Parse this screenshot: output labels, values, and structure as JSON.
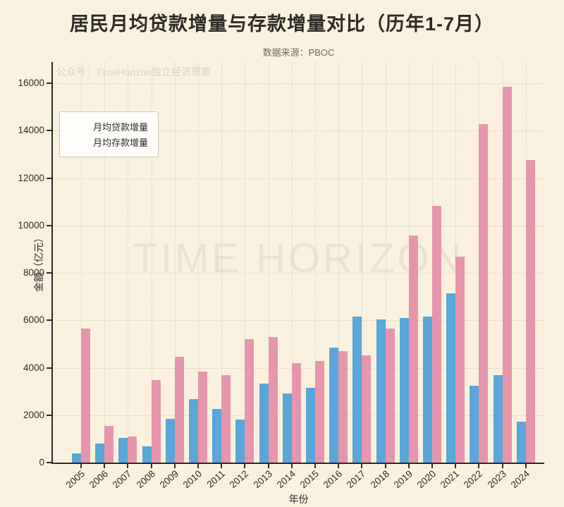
{
  "title": "居民月均贷款增量与存款增量对比（历年1-7月）",
  "subtitle": "数据来源：PBOC",
  "watermarks": {
    "plot_corner": "公众号：TimeHorizon独立经济观察",
    "center": "TIME HORIZON"
  },
  "colors": {
    "background": "#f9f1dd",
    "loan_blue": "#58a6da",
    "deposit_pink": "#e795ac",
    "spine": "#2b2b2b",
    "grid": "#d8cfba"
  },
  "chart_data": {
    "type": "bar",
    "title": "居民月均贷款增量与存款增量对比（历年1-7月）",
    "subtitle": "数据来源：PBOC",
    "xlabel": "年份",
    "ylabel": "金额（亿元）",
    "categories": [
      "2005",
      "2006",
      "2007",
      "2008",
      "2009",
      "2010",
      "2011",
      "2012",
      "2013",
      "2014",
      "2015",
      "2016",
      "2017",
      "2018",
      "2019",
      "2020",
      "2021",
      "2022",
      "2023",
      "2024"
    ],
    "series": [
      {
        "name": "月均贷款增量",
        "color": "#58a6da",
        "values": [
          400,
          800,
          1040,
          670,
          1840,
          2680,
          2260,
          1820,
          3330,
          2910,
          3160,
          4850,
          6150,
          6050,
          6100,
          6170,
          7140,
          3250,
          3690,
          1740
        ]
      },
      {
        "name": "月均存款增量",
        "color": "#e795ac",
        "values": [
          5650,
          1560,
          1110,
          3470,
          4470,
          3850,
          3700,
          5220,
          5310,
          4200,
          4290,
          4710,
          4510,
          5660,
          9590,
          10840,
          8680,
          14270,
          15850,
          12750
        ]
      }
    ],
    "ylim": [
      0,
      16900
    ],
    "yticks": [
      0,
      2000,
      4000,
      6000,
      8000,
      10000,
      12000,
      14000,
      16000
    ],
    "grid": true,
    "legend_position": "upper-left"
  }
}
